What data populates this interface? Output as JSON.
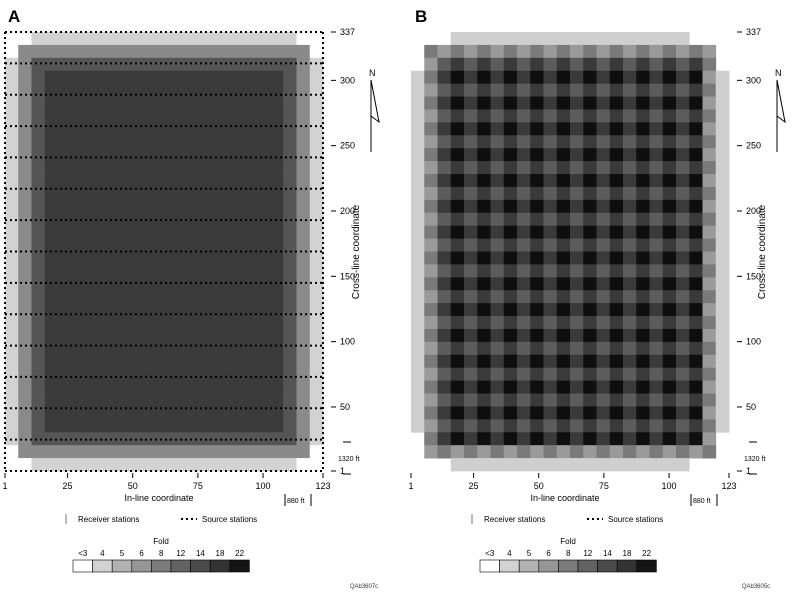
{
  "panels": [
    {
      "letter": "A",
      "xlabel": "In-line coordinate",
      "ylabel": "Cross-line coordinate",
      "xticks": [
        "1",
        "25",
        "50",
        "75",
        "100",
        "123"
      ],
      "yticks": [
        "1",
        "50",
        "100",
        "150",
        "200",
        "250",
        "300",
        "337"
      ],
      "north_label": "N",
      "scale_v": "1320 ft",
      "scale_h": "880 ft",
      "figure_id": "QAb3607c",
      "pattern": "smooth"
    },
    {
      "letter": "B",
      "xlabel": "In-line coordinate",
      "ylabel": "Cross-line coordinate",
      "xticks": [
        "1",
        "25",
        "50",
        "75",
        "100",
        "123"
      ],
      "yticks": [
        "1",
        "50",
        "100",
        "150",
        "200",
        "250",
        "300",
        "337"
      ],
      "north_label": "N",
      "scale_v": "1320 ft",
      "scale_h": "880 ft",
      "figure_id": "QAb3605c",
      "pattern": "checker"
    }
  ],
  "legend": {
    "receiver_label": "Receiver stations",
    "source_label": "Source stations",
    "fold_title": "Fold",
    "fold_labels": [
      "<3",
      "4",
      "5",
      "6",
      "8",
      "12",
      "14",
      "18",
      "22"
    ],
    "fold_colors": [
      "#ffffff",
      "#d2d2d2",
      "#b2b2b2",
      "#969696",
      "#7c7c7c",
      "#626262",
      "#4a4a4a",
      "#333333",
      "#141414"
    ]
  }
}
